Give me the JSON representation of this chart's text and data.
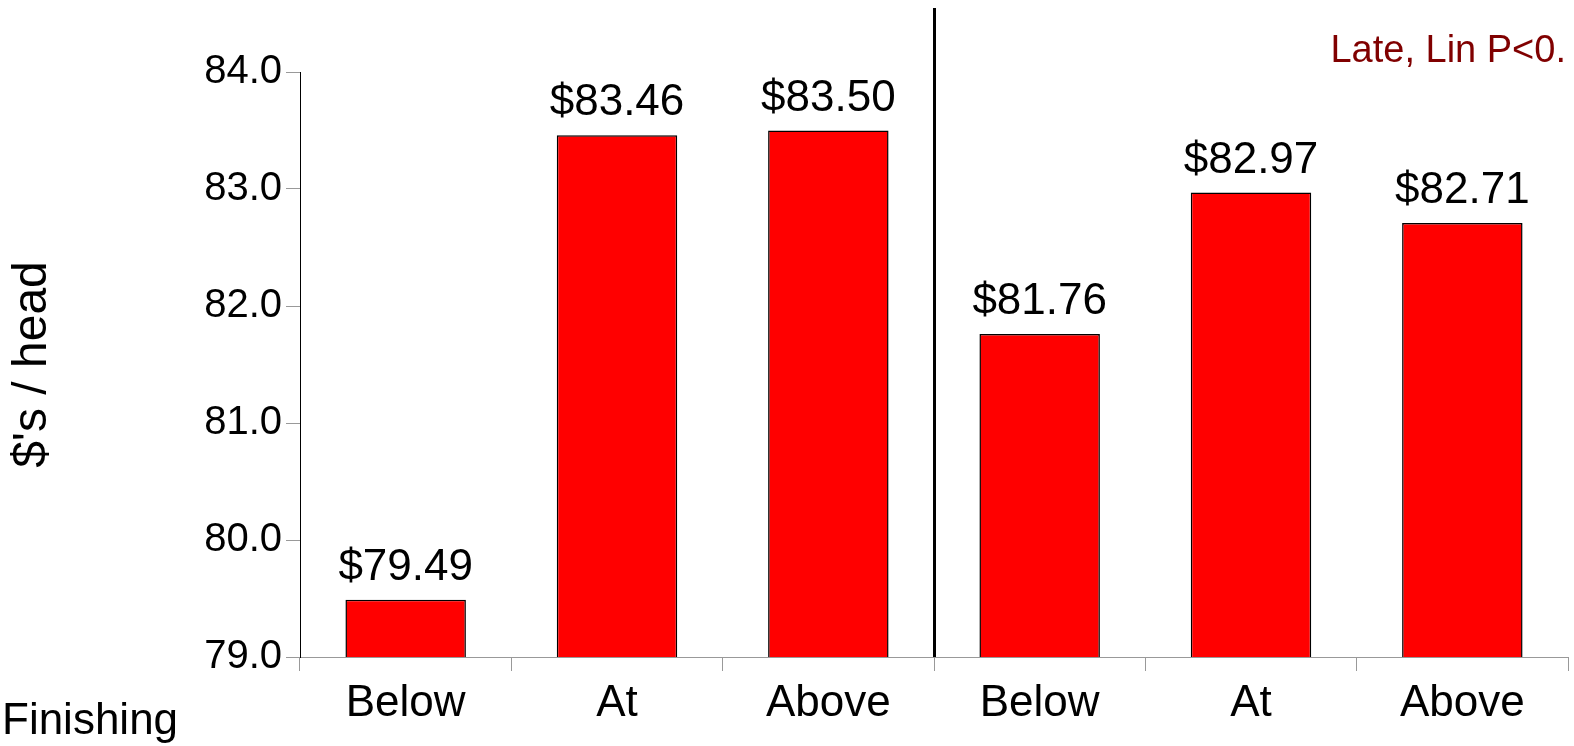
{
  "chart_data": {
    "type": "bar",
    "ylabel": "$'s / head",
    "categories": [
      "Below",
      "At",
      "Above",
      "Below",
      "At",
      "Above"
    ],
    "values": [
      79.49,
      83.46,
      83.5,
      81.76,
      82.97,
      82.71
    ],
    "value_labels": [
      "$79.49",
      "$83.46",
      "$83.50",
      "$81.76",
      "$82.97",
      "$82.71"
    ],
    "color": "#ff0000",
    "ylim": [
      79,
      84
    ],
    "yticks": [
      {
        "value": 79,
        "label": "79.0"
      },
      {
        "value": 80,
        "label": "80.0"
      },
      {
        "value": 81,
        "label": "81.0"
      },
      {
        "value": 82,
        "label": "82.0"
      },
      {
        "value": 83,
        "label": "83.0"
      },
      {
        "value": 84,
        "label": "84.0"
      }
    ],
    "grid": false,
    "legend": false,
    "annotations": [
      "Late, Lin P<0.",
      "Finishing"
    ]
  }
}
